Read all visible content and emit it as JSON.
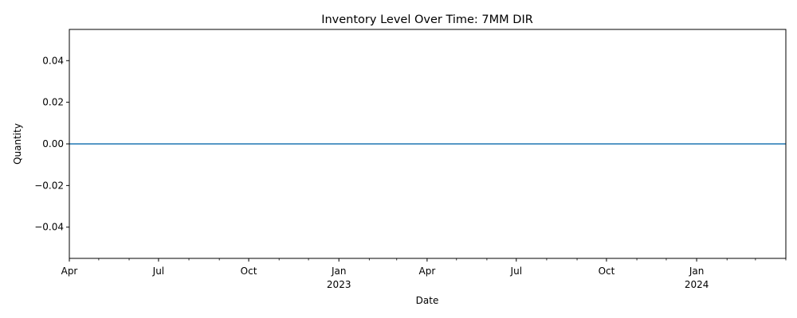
{
  "chart_data": {
    "type": "line",
    "title": "Inventory Level Over Time: 7MM DIR",
    "xlabel": "Date",
    "ylabel": "Quantity",
    "x_range": [
      "2022-04-01",
      "2024-04-01"
    ],
    "ylim": [
      -0.055,
      0.055
    ],
    "y_ticks": [
      -0.04,
      -0.02,
      0.0,
      0.02,
      0.04
    ],
    "y_tick_labels": [
      "−0.04",
      "−0.02",
      "0.00",
      "0.02",
      "0.04"
    ],
    "x_ticks": [
      {
        "date": "2022-04-01",
        "label": "Apr",
        "year": ""
      },
      {
        "date": "2022-07-01",
        "label": "Jul",
        "year": ""
      },
      {
        "date": "2022-10-01",
        "label": "Oct",
        "year": ""
      },
      {
        "date": "2023-01-01",
        "label": "Jan",
        "year": "2023"
      },
      {
        "date": "2023-04-01",
        "label": "Apr",
        "year": ""
      },
      {
        "date": "2023-07-01",
        "label": "Jul",
        "year": ""
      },
      {
        "date": "2023-10-01",
        "label": "Oct",
        "year": ""
      },
      {
        "date": "2024-01-01",
        "label": "Jan",
        "year": "2024"
      }
    ],
    "x_minor_ticks": [
      "2022-05-01",
      "2022-06-01",
      "2022-08-01",
      "2022-09-01",
      "2022-11-01",
      "2022-12-01",
      "2023-02-01",
      "2023-03-01",
      "2023-05-01",
      "2023-06-01",
      "2023-08-01",
      "2023-09-01",
      "2023-11-01",
      "2023-12-01",
      "2024-02-01",
      "2024-03-01",
      "2024-04-01"
    ],
    "grid": false,
    "series": [
      {
        "color": "#1f77b4",
        "points": [
          {
            "x": "2022-04-01",
            "y": 0
          },
          {
            "x": "2024-04-01",
            "y": 0
          }
        ]
      }
    ]
  }
}
